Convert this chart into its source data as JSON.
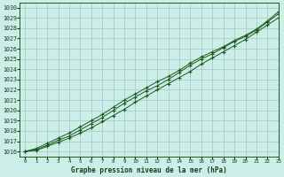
{
  "title": "Graphe pression niveau de la mer (hPa)",
  "background_color": "#cceee8",
  "grid_color": "#aacccc",
  "line_color": "#1a5c1a",
  "xlim": [
    -0.5,
    23
  ],
  "ylim": [
    1015.5,
    1030.5
  ],
  "xticks": [
    0,
    1,
    2,
    3,
    4,
    5,
    6,
    7,
    8,
    9,
    10,
    11,
    12,
    13,
    14,
    15,
    16,
    17,
    18,
    19,
    20,
    21,
    22,
    23
  ],
  "yticks": [
    1016,
    1017,
    1018,
    1019,
    1020,
    1021,
    1022,
    1023,
    1024,
    1025,
    1026,
    1027,
    1028,
    1029,
    1030
  ],
  "series1": [
    1016.0,
    1016.1,
    1016.5,
    1016.9,
    1017.3,
    1017.8,
    1018.3,
    1018.9,
    1019.5,
    1020.1,
    1020.8,
    1021.4,
    1022.0,
    1022.6,
    1023.2,
    1023.8,
    1024.5,
    1025.1,
    1025.7,
    1026.3,
    1026.9,
    1027.6,
    1028.3,
    1029.0
  ],
  "series2": [
    1016.0,
    1016.2,
    1016.6,
    1017.1,
    1017.5,
    1018.1,
    1018.7,
    1019.3,
    1020.0,
    1020.7,
    1021.3,
    1021.9,
    1022.4,
    1023.0,
    1023.7,
    1024.4,
    1025.0,
    1025.5,
    1026.1,
    1026.7,
    1027.2,
    1027.8,
    1028.6,
    1029.4
  ],
  "series3": [
    1016.0,
    1016.3,
    1016.8,
    1017.3,
    1017.8,
    1018.4,
    1019.0,
    1019.6,
    1020.3,
    1021.0,
    1021.6,
    1022.2,
    1022.8,
    1023.3,
    1023.9,
    1024.6,
    1025.2,
    1025.7,
    1026.2,
    1026.8,
    1027.3,
    1027.9,
    1028.7,
    1029.6
  ]
}
